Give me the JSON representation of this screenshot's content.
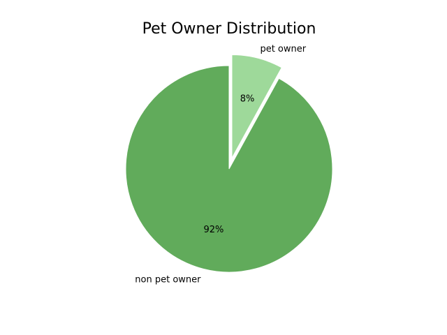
{
  "chart_data": {
    "type": "pie",
    "title": "Pet Owner Distribution",
    "slices": [
      {
        "label": "pet owner",
        "value": 8,
        "pct_label": "8%",
        "color": "#9ed99a",
        "exploded": true
      },
      {
        "label": "non pet owner",
        "value": 92,
        "pct_label": "92%",
        "color": "#61ab5b",
        "exploded": false
      }
    ],
    "start_angle_deg": 90,
    "direction": "clockwise"
  }
}
